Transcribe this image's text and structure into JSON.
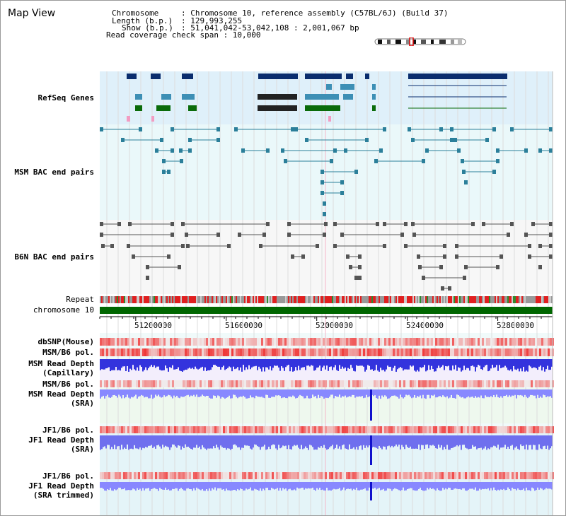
{
  "view": {
    "title": "Map View"
  },
  "header": {
    "chromosome_key": "Chromosome",
    "chromosome_val": ": Chromosome 10, reference assembly (C57BL/6J) (Build 37)",
    "length_key": "Length (b.p.)",
    "length_val": ": 129,993,255",
    "show_key": "Show (b.p.)",
    "show_val": ": 51,041,042-53,042,108 : 2,001,067 bp",
    "span_line": "Read coverage check span : 10,000"
  },
  "tracks": [
    {
      "id": "refseq",
      "label": "RefSeq Genes",
      "color": "#000099"
    },
    {
      "id": "msm_bac",
      "label": "MSM BAC end pairs",
      "color": "#1f6f8b"
    },
    {
      "id": "b6n_bac",
      "label": "B6N BAC end pairs",
      "color": "#444444"
    },
    {
      "id": "repeat",
      "label": "Repeat",
      "color": "#000000"
    },
    {
      "id": "chrom",
      "label": "chromosome 10",
      "color": "#000000"
    },
    {
      "id": "dbsnp",
      "label": "dbSNP(Mouse)",
      "color": "#333333"
    },
    {
      "id": "msmb6pol",
      "label": "MSM/B6 pol.",
      "color": "#333333"
    },
    {
      "id": "msm_depth_cap",
      "label": "MSM Read Depth",
      "label2": "(Capillary)",
      "color": "#333333"
    },
    {
      "id": "msmb6pol2",
      "label": "MSM/B6 pol.",
      "color": "#e8a020"
    },
    {
      "id": "msm_depth_sra",
      "label": "MSM Read Depth",
      "label2": "(SRA)",
      "color": "#0000aa"
    },
    {
      "id": "jf1b6pol",
      "label": "JF1/B6 pol.",
      "color": "#e8a020"
    },
    {
      "id": "jf1_depth_sra",
      "label": "JF1 Read Depth",
      "label2": "(SRA)",
      "color": "#0000aa"
    },
    {
      "id": "jf1b6pol2",
      "label": "JF1/B6 pol.",
      "color": "#e8a020"
    },
    {
      "id": "jf1_depth_trim",
      "label": "JF1 Read Depth",
      "label2": "(SRA trimmed)",
      "color": "#0000aa"
    }
  ],
  "axis": {
    "range": [
      51041042,
      53042108
    ],
    "ticks": [
      "51200000",
      "51600000",
      "52000000",
      "52400000",
      "52800000"
    ],
    "tick_values": [
      51200000,
      51600000,
      52000000,
      52400000,
      52800000
    ]
  },
  "colors": {
    "refseq_bg": "#dff0fa",
    "msm_bg": "#eaf8fa",
    "b6n_bg": "#f7f7f7",
    "chrom_green": "#006600",
    "depth_blue": "#2222dd",
    "depth_light": "#8888ff",
    "pol_red": "#ee2222"
  }
}
